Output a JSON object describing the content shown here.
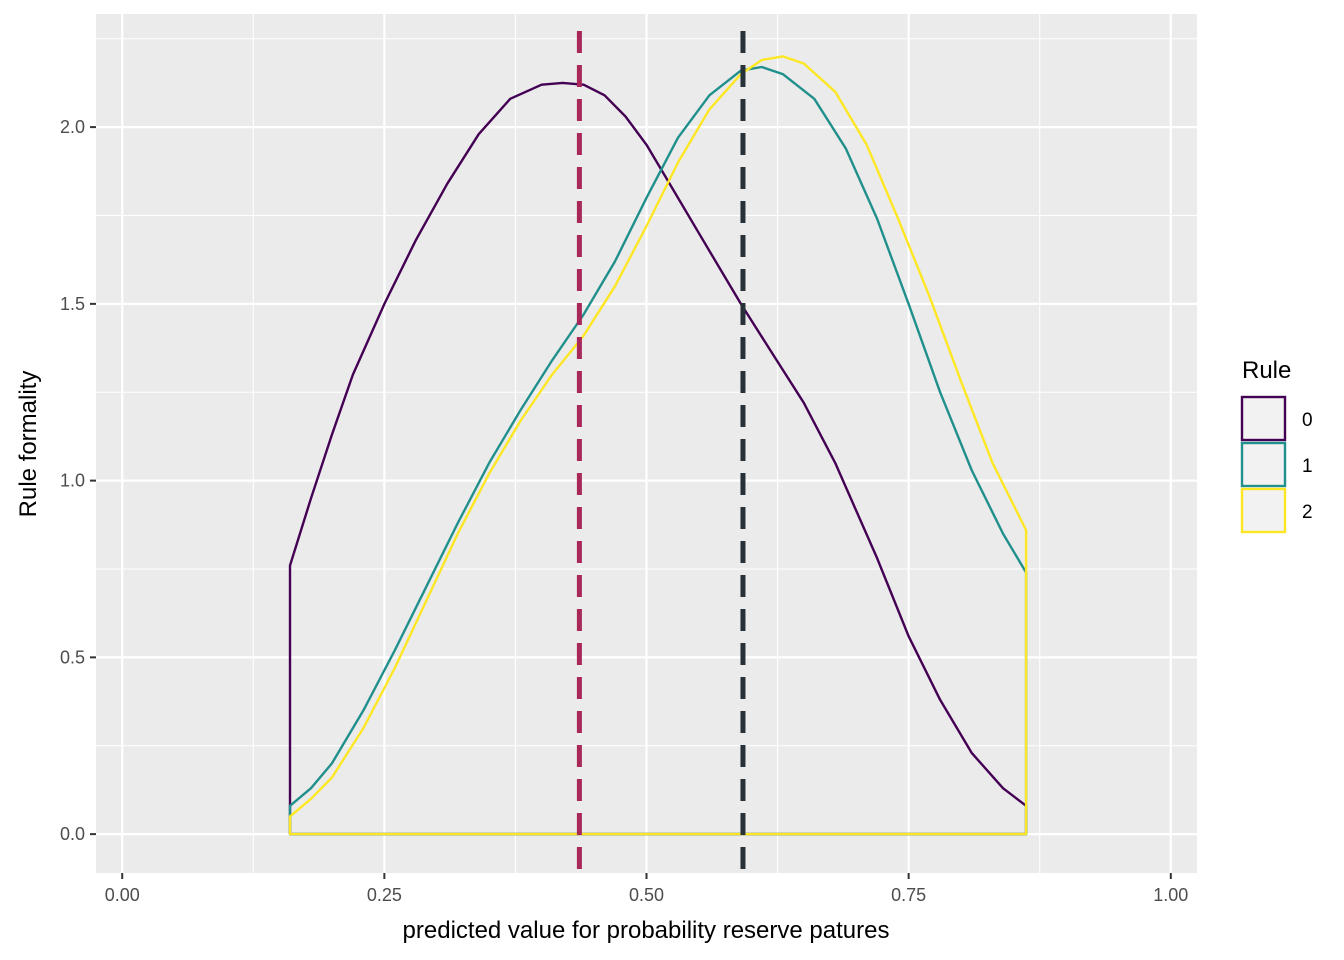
{
  "chart_data": {
    "type": "density",
    "xlabel": "predicted value for probability reserve patures",
    "ylabel": "Rule formality",
    "xlim": [
      -0.025,
      1.025
    ],
    "ylim": [
      -0.11,
      2.32
    ],
    "x_ticks": [
      0.0,
      0.25,
      0.5,
      0.75,
      1.0
    ],
    "x_tick_labels": [
      "0.00",
      "0.25",
      "0.50",
      "0.75",
      "1.00"
    ],
    "y_ticks": [
      0.0,
      0.5,
      1.0,
      1.5,
      2.0
    ],
    "y_tick_labels": [
      "0.0",
      "0.5",
      "1.0",
      "1.5",
      "2.0"
    ],
    "grid": true,
    "legend": {
      "title": "Rule",
      "position": "right",
      "entries": [
        {
          "label": "0",
          "color": "#440154"
        },
        {
          "label": "1",
          "color": "#21908C"
        },
        {
          "label": "2",
          "color": "#FDE725"
        }
      ]
    },
    "series": [
      {
        "key": "0",
        "color": "#440154",
        "x": [
          0.16,
          0.18,
          0.2,
          0.22,
          0.25,
          0.28,
          0.31,
          0.34,
          0.37,
          0.4,
          0.42,
          0.44,
          0.46,
          0.48,
          0.5,
          0.52,
          0.55,
          0.59,
          0.62,
          0.65,
          0.68,
          0.72,
          0.75,
          0.78,
          0.81,
          0.84,
          0.862
        ],
        "y": [
          0.76,
          0.95,
          1.13,
          1.3,
          1.5,
          1.68,
          1.84,
          1.98,
          2.08,
          2.12,
          2.125,
          2.12,
          2.09,
          2.03,
          1.95,
          1.85,
          1.7,
          1.5,
          1.36,
          1.22,
          1.05,
          0.78,
          0.56,
          0.38,
          0.23,
          0.13,
          0.08
        ]
      },
      {
        "key": "1",
        "color": "#21908C",
        "x": [
          0.16,
          0.18,
          0.2,
          0.23,
          0.26,
          0.29,
          0.32,
          0.35,
          0.38,
          0.41,
          0.44,
          0.47,
          0.5,
          0.53,
          0.56,
          0.59,
          0.61,
          0.63,
          0.66,
          0.69,
          0.72,
          0.75,
          0.78,
          0.81,
          0.84,
          0.862
        ],
        "y": [
          0.08,
          0.13,
          0.2,
          0.35,
          0.52,
          0.7,
          0.88,
          1.05,
          1.2,
          1.34,
          1.47,
          1.62,
          1.8,
          1.97,
          2.09,
          2.16,
          2.17,
          2.15,
          2.08,
          1.94,
          1.74,
          1.5,
          1.25,
          1.03,
          0.85,
          0.74
        ]
      },
      {
        "key": "2",
        "color": "#FDE725",
        "x": [
          0.16,
          0.18,
          0.2,
          0.23,
          0.26,
          0.29,
          0.32,
          0.35,
          0.38,
          0.41,
          0.44,
          0.47,
          0.5,
          0.53,
          0.56,
          0.59,
          0.61,
          0.63,
          0.65,
          0.68,
          0.71,
          0.74,
          0.77,
          0.8,
          0.83,
          0.862
        ],
        "y": [
          0.05,
          0.1,
          0.16,
          0.3,
          0.47,
          0.66,
          0.85,
          1.02,
          1.17,
          1.3,
          1.41,
          1.55,
          1.72,
          1.9,
          2.05,
          2.15,
          2.19,
          2.2,
          2.18,
          2.1,
          1.95,
          1.74,
          1.52,
          1.28,
          1.05,
          0.86
        ]
      }
    ],
    "vlines": [
      {
        "x": 0.436,
        "color": "#A8285A",
        "dash": "dashed"
      },
      {
        "x": 0.592,
        "color": "#263238",
        "dash": "dashed"
      }
    ]
  }
}
